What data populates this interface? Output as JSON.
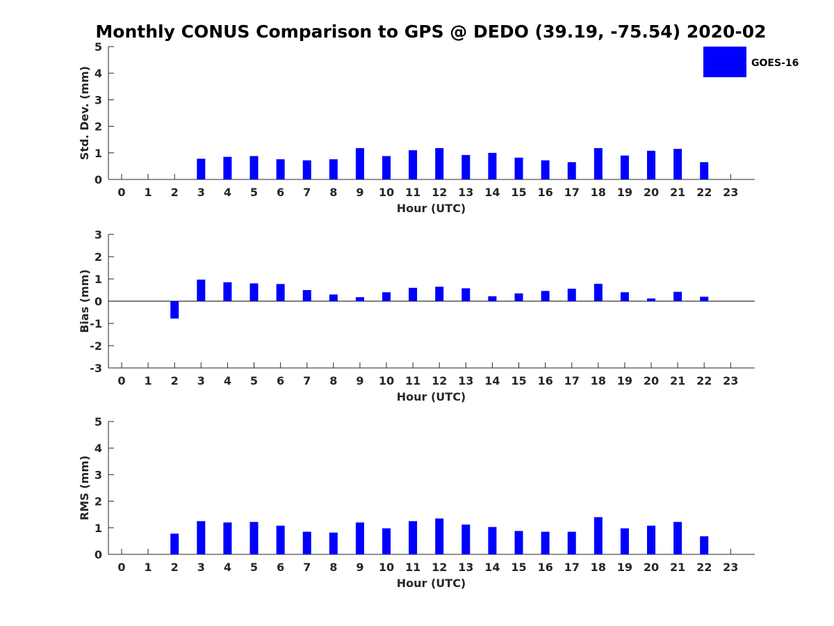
{
  "chart_data": {
    "title": "Monthly CONUS Comparison to GPS @ DEDO (39.19, -75.54) 2020-02",
    "bar_color": "#0000ff",
    "legend": {
      "label": "GOES-16",
      "placement": "top-right"
    },
    "panels": [
      {
        "type": "bar",
        "ylabel": "Std. Dev. (mm)",
        "xlabel": "Hour (UTC)",
        "ylim": [
          0,
          5
        ],
        "yticks": [
          "0",
          "1",
          "2",
          "3",
          "4",
          "5"
        ],
        "categories": [
          "0",
          "1",
          "2",
          "3",
          "4",
          "5",
          "6",
          "7",
          "8",
          "9",
          "10",
          "11",
          "12",
          "13",
          "14",
          "15",
          "16",
          "17",
          "18",
          "19",
          "20",
          "21",
          "22",
          "23"
        ],
        "series": [
          {
            "name": "GOES-16",
            "values": [
              null,
              null,
              null,
              0.78,
              0.85,
              0.88,
              0.76,
              0.72,
              0.76,
              1.18,
              0.88,
              1.1,
              1.18,
              0.92,
              1.0,
              0.82,
              0.72,
              0.65,
              1.18,
              0.9,
              1.08,
              1.15,
              0.65,
              null
            ]
          }
        ]
      },
      {
        "type": "bar",
        "ylabel": "Bias (mm)",
        "xlabel": "Hour (UTC)",
        "ylim": [
          -3,
          3
        ],
        "yticks": [
          "-3",
          "-2",
          "-1",
          "0",
          "1",
          "2",
          "3"
        ],
        "zero_line": true,
        "categories": [
          "0",
          "1",
          "2",
          "3",
          "4",
          "5",
          "6",
          "7",
          "8",
          "9",
          "10",
          "11",
          "12",
          "13",
          "14",
          "15",
          "16",
          "17",
          "18",
          "19",
          "20",
          "21",
          "22",
          "23"
        ],
        "series": [
          {
            "name": "GOES-16",
            "values": [
              null,
              null,
              -0.78,
              0.97,
              0.85,
              0.8,
              0.77,
              0.5,
              0.3,
              0.18,
              0.4,
              0.6,
              0.65,
              0.58,
              0.22,
              0.35,
              0.46,
              0.56,
              0.78,
              0.4,
              0.12,
              0.42,
              0.2,
              null
            ]
          }
        ]
      },
      {
        "type": "bar",
        "ylabel": "RMS (mm)",
        "xlabel": "Hour (UTC)",
        "ylim": [
          0,
          5
        ],
        "yticks": [
          "0",
          "1",
          "2",
          "3",
          "4",
          "5"
        ],
        "categories": [
          "0",
          "1",
          "2",
          "3",
          "4",
          "5",
          "6",
          "7",
          "8",
          "9",
          "10",
          "11",
          "12",
          "13",
          "14",
          "15",
          "16",
          "17",
          "18",
          "19",
          "20",
          "21",
          "22",
          "23"
        ],
        "series": [
          {
            "name": "GOES-16",
            "values": [
              null,
              null,
              0.78,
              1.25,
              1.2,
              1.22,
              1.08,
              0.85,
              0.82,
              1.2,
              0.98,
              1.25,
              1.35,
              1.12,
              1.03,
              0.88,
              0.85,
              0.85,
              1.4,
              0.98,
              1.08,
              1.22,
              0.68,
              null
            ]
          }
        ]
      }
    ]
  }
}
